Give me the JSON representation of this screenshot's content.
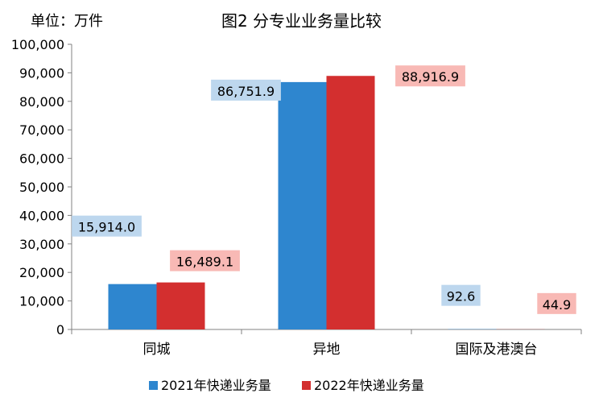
{
  "unit_label": "单位：万件",
  "chart_data": {
    "type": "bar",
    "title": "图2  分专业业务量比较",
    "categories": [
      "同城",
      "异地",
      "国际及港澳台"
    ],
    "series": [
      {
        "name": "2021年快递业务量",
        "values": [
          15914.0,
          86751.9,
          92.6
        ],
        "labels": [
          "15,914.0",
          "86,751.9",
          "92.6"
        ],
        "color": "#2e86cf",
        "label_bg": "#bdd7ee"
      },
      {
        "name": "2022年快递业务量",
        "values": [
          16489.1,
          88916.9,
          44.9
        ],
        "labels": [
          "16,489.1",
          "88,916.9",
          "44.9"
        ],
        "color": "#d32f2f",
        "label_bg": "#f8b9b5"
      }
    ],
    "ylim": [
      0,
      100000
    ],
    "yticks": [
      0,
      10000,
      20000,
      30000,
      40000,
      50000,
      60000,
      70000,
      80000,
      90000,
      100000
    ],
    "ytick_labels": [
      "0",
      "10,000",
      "20,000",
      "30,000",
      "40,000",
      "50,000",
      "60,000",
      "70,000",
      "80,000",
      "90,000",
      "100,000"
    ],
    "xlabel": "",
    "ylabel": "",
    "grid": false,
    "legend": "bottom"
  }
}
